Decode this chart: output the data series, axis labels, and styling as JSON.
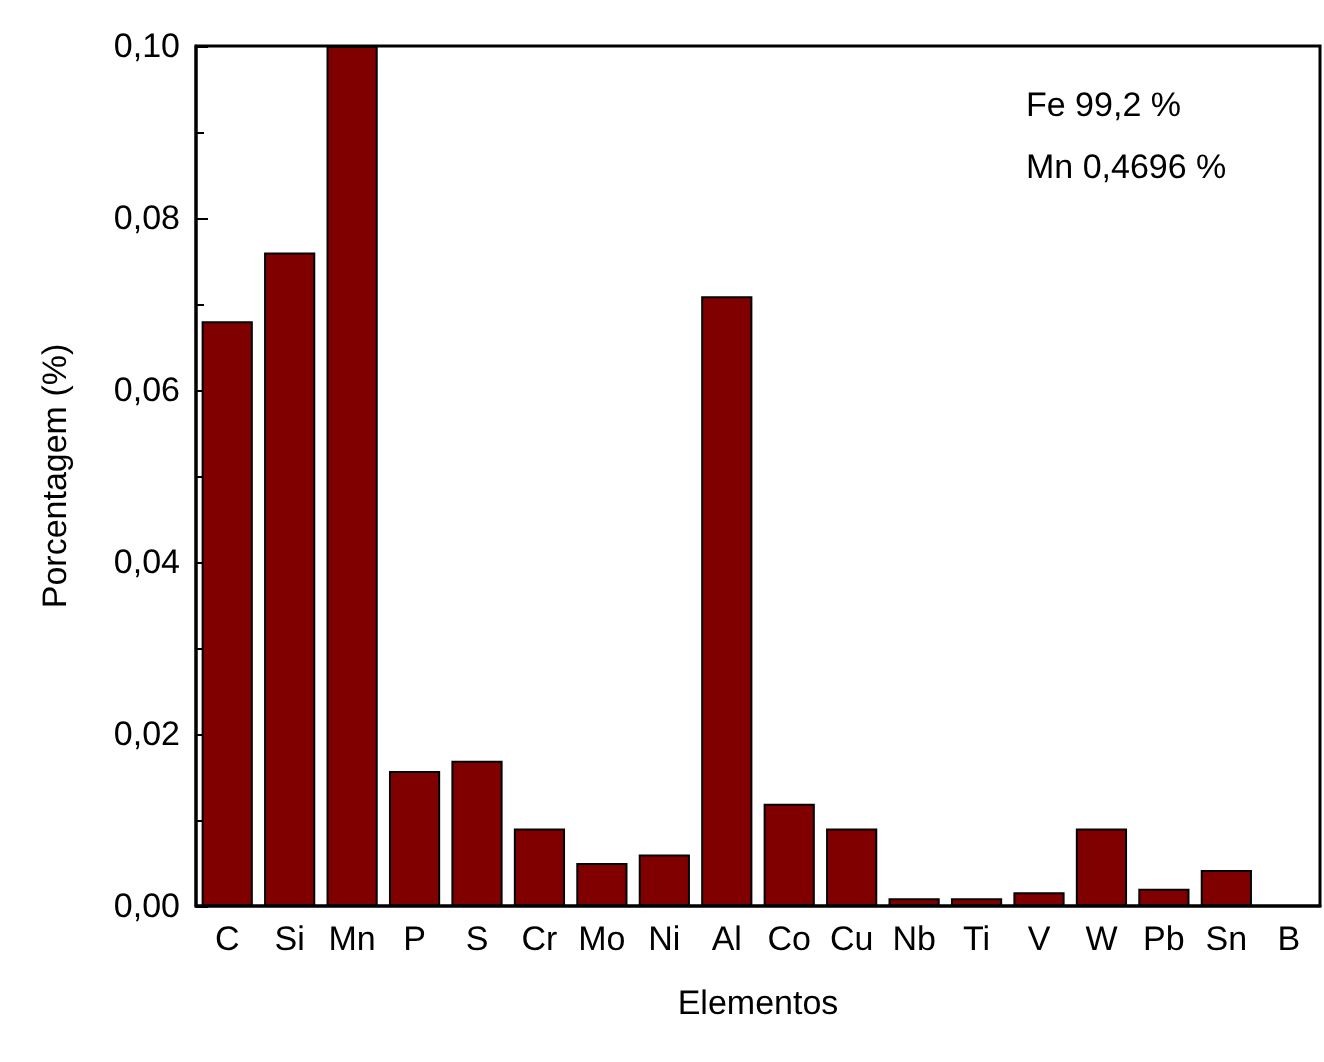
{
  "chart_data": {
    "type": "bar",
    "xlabel": "Elementos",
    "ylabel": "Porcentagem (%)",
    "categories": [
      "C",
      "Si",
      "Mn",
      "P",
      "S",
      "Cr",
      "Mo",
      "Ni",
      "Al",
      "Co",
      "Cu",
      "Nb",
      "Ti",
      "V",
      "W",
      "Pb",
      "Sn",
      "B"
    ],
    "values": [
      0.068,
      0.076,
      0.1,
      0.0157,
      0.0169,
      0.009,
      0.005,
      0.006,
      0.0709,
      0.0119,
      0.009,
      0.0009,
      0.0009,
      0.0016,
      0.009,
      0.002,
      0.0042,
      0
    ],
    "color": "#800000",
    "ylim": [
      0,
      0.1
    ],
    "yticks": [
      {
        "value": 0,
        "label": "0,00"
      },
      {
        "value": 0.02,
        "label": "0,02"
      },
      {
        "value": 0.04,
        "label": "0,04"
      },
      {
        "value": 0.06,
        "label": "0,06"
      },
      {
        "value": 0.08,
        "label": "0,08"
      },
      {
        "value": 0.1,
        "label": "0,10"
      }
    ],
    "annotations": [
      "Fe 99,2 %",
      "Mn 0,4696 %"
    ]
  }
}
